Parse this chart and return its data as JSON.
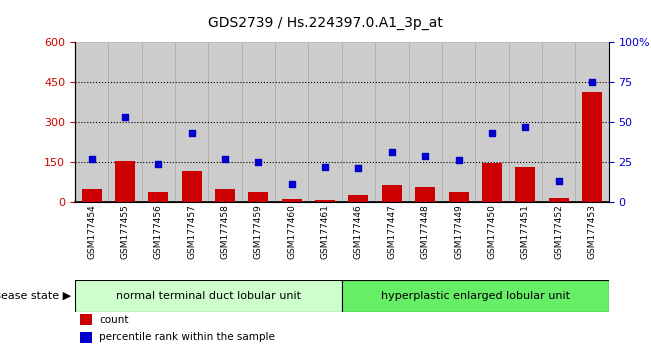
{
  "title": "GDS2739 / Hs.224397.0.A1_3p_at",
  "samples": [
    "GSM177454",
    "GSM177455",
    "GSM177456",
    "GSM177457",
    "GSM177458",
    "GSM177459",
    "GSM177460",
    "GSM177461",
    "GSM177446",
    "GSM177447",
    "GSM177448",
    "GSM177449",
    "GSM177450",
    "GSM177451",
    "GSM177452",
    "GSM177453"
  ],
  "counts": [
    50,
    155,
    35,
    115,
    50,
    35,
    10,
    5,
    25,
    65,
    55,
    35,
    145,
    130,
    15,
    415
  ],
  "percentiles": [
    27,
    53,
    24,
    43,
    27,
    25,
    11,
    22,
    21,
    31,
    29,
    26,
    43,
    47,
    13,
    75
  ],
  "group1_label": "normal terminal duct lobular unit",
  "group2_label": "hyperplastic enlarged lobular unit",
  "group1_count": 8,
  "group2_count": 8,
  "bar_color": "#cc0000",
  "dot_color": "#0000cc",
  "ylim_left": [
    0,
    600
  ],
  "ylim_right": [
    0,
    100
  ],
  "yticks_left": [
    0,
    150,
    300,
    450,
    600
  ],
  "yticks_right": [
    0,
    25,
    50,
    75,
    100
  ],
  "group1_bg": "#ccffcc",
  "group2_bg": "#66ee66",
  "tick_bg": "#cccccc",
  "disease_state_label": "disease state",
  "legend_count_label": "count",
  "legend_pct_label": "percentile rank within the sample",
  "hline_values": [
    150,
    300,
    450
  ],
  "title_fontsize": 10,
  "tick_fontsize": 6.5,
  "legend_fontsize": 7.5,
  "strip_fontsize": 8
}
